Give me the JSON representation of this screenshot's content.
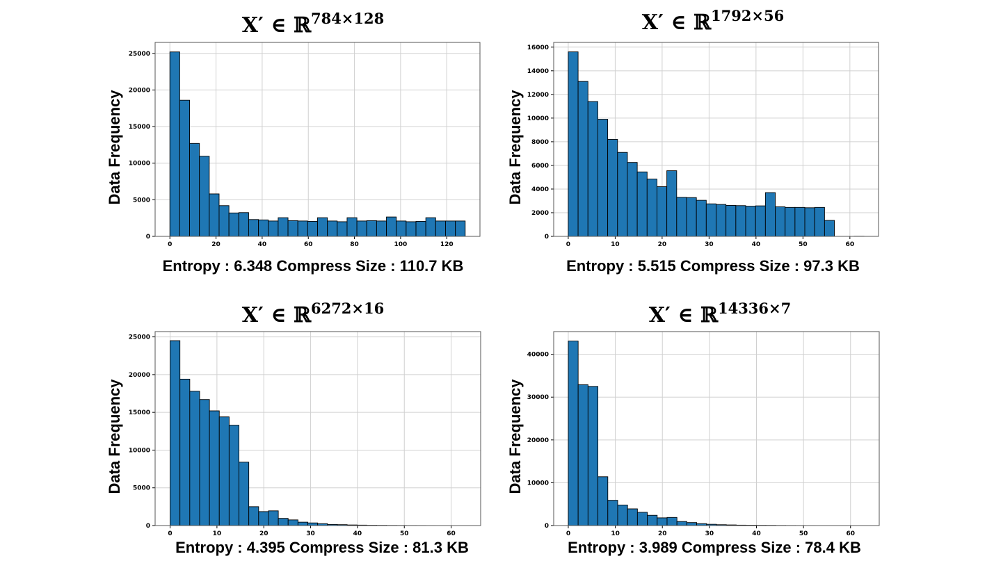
{
  "chart_data": [
    {
      "type": "bar",
      "title": {
        "base": "X′ ∈ ℝ",
        "superscript": "784×128"
      },
      "ylabel": "Data Frequency",
      "caption": "Entropy : 6.348 Compress Size : 110.7 KB",
      "bin_range": [
        0,
        128
      ],
      "xlim": [
        -6.4,
        134.4
      ],
      "ylim": [
        0,
        26500
      ],
      "xticks": [
        0,
        20,
        40,
        60,
        80,
        100,
        120
      ],
      "yticks": [
        0,
        5000,
        10000,
        15000,
        20000,
        25000
      ],
      "grid": true,
      "bar_color": "#1f77b4",
      "edge_color": "#000000",
      "values": [
        25200,
        18600,
        12700,
        10950,
        5800,
        4200,
        3200,
        3250,
        2300,
        2250,
        2100,
        2550,
        2150,
        2100,
        2050,
        2550,
        2100,
        2000,
        2550,
        2100,
        2150,
        2100,
        2650,
        2100,
        2000,
        2050,
        2550,
        2100,
        2100,
        2100
      ]
    },
    {
      "type": "bar",
      "title": {
        "base": "X′ ∈ ℝ",
        "superscript": "1792×56"
      },
      "ylabel": "Data Frequency",
      "caption": "Entropy : 5.515 Compress Size : 97.3 KB",
      "bin_range": [
        0,
        63
      ],
      "xlim": [
        -3.1,
        66.1
      ],
      "ylim": [
        0,
        16400
      ],
      "xticks": [
        0,
        10,
        20,
        30,
        40,
        50,
        60
      ],
      "yticks": [
        0,
        2000,
        4000,
        6000,
        8000,
        10000,
        12000,
        14000,
        16000
      ],
      "grid": true,
      "bar_color": "#1f77b4",
      "edge_color": "#000000",
      "values": [
        15600,
        13100,
        11400,
        9900,
        8200,
        7100,
        6250,
        5450,
        4850,
        4200,
        5550,
        3300,
        3280,
        3050,
        2750,
        2700,
        2620,
        2600,
        2550,
        2580,
        3700,
        2500,
        2450,
        2450,
        2420,
        2450,
        1350,
        0,
        0,
        10
      ]
    },
    {
      "type": "bar",
      "title": {
        "base": "X′ ∈ ℝ",
        "superscript": "6272×16"
      },
      "ylabel": "Data Frequency",
      "caption": "Entropy : 4.395 Compress Size : 81.3 KB",
      "bin_range": [
        0,
        63
      ],
      "xlim": [
        -3.2,
        66.3
      ],
      "ylim": [
        0,
        25700
      ],
      "xticks": [
        0,
        10,
        20,
        30,
        40,
        50,
        60
      ],
      "yticks": [
        0,
        5000,
        10000,
        15000,
        20000,
        25000
      ],
      "grid": true,
      "bar_color": "#1f77b4",
      "edge_color": "#000000",
      "values": [
        24500,
        19400,
        17800,
        16700,
        15200,
        14400,
        13300,
        8400,
        2500,
        1850,
        1950,
        950,
        750,
        450,
        350,
        250,
        150,
        120,
        80,
        60,
        40,
        30,
        20,
        15,
        10,
        8,
        5,
        3,
        2,
        1
      ]
    },
    {
      "type": "bar",
      "title": {
        "base": "X′ ∈ ℝ",
        "superscript": "14336×7"
      },
      "ylabel": "Data Frequency",
      "caption": "Entropy : 3.989 Compress Size : 78.4 KB",
      "bin_range": [
        0,
        63
      ],
      "xlim": [
        -3.1,
        66.1
      ],
      "ylim": [
        0,
        45300
      ],
      "xticks": [
        0,
        10,
        20,
        30,
        40,
        50,
        60
      ],
      "yticks": [
        0,
        10000,
        20000,
        30000,
        40000
      ],
      "grid": true,
      "bar_color": "#1f77b4",
      "edge_color": "#000000",
      "values": [
        43100,
        32900,
        32500,
        11400,
        5900,
        4800,
        3900,
        3100,
        2400,
        1800,
        1900,
        950,
        700,
        450,
        300,
        200,
        150,
        100,
        80,
        60,
        50,
        30,
        20,
        15,
        10,
        8,
        5,
        3,
        2,
        1
      ]
    }
  ]
}
